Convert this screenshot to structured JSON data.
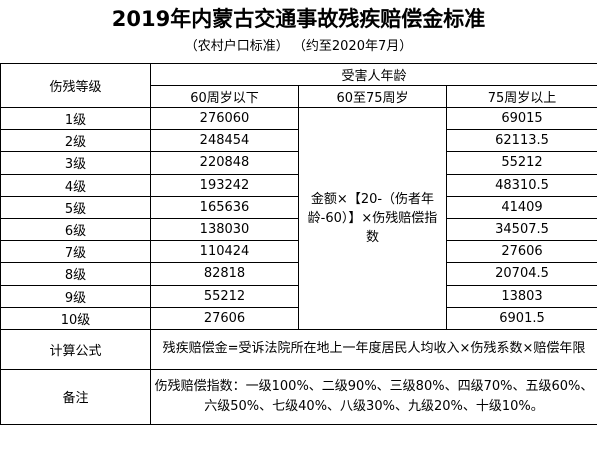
{
  "title": "2019年内蒙古交通事故残疾赔偿金标准",
  "subtitle": "（农村户口标准）    （约至2020年7月）",
  "headers": {
    "grade": "伤残等级",
    "age_group": "受害人年龄",
    "under60": "60周岁以下",
    "from60to75": "60至75周岁",
    "over75": "75周岁以上"
  },
  "rows": [
    {
      "grade": "1级",
      "under60": "276060",
      "over75": "69015"
    },
    {
      "grade": "2级",
      "under60": "248454",
      "over75": "62113.5"
    },
    {
      "grade": "3级",
      "under60": "220848",
      "over75": "55212"
    },
    {
      "grade": "4级",
      "under60": "193242",
      "over75": "48310.5"
    },
    {
      "grade": "5级",
      "under60": "165636",
      "over75": "41409"
    },
    {
      "grade": "6级",
      "under60": "138030",
      "over75": "34507.5"
    },
    {
      "grade": "7级",
      "under60": "110424",
      "over75": "27606"
    },
    {
      "grade": "8级",
      "under60": "82818",
      "over75": "20704.5"
    },
    {
      "grade": "9级",
      "under60": "55212",
      "over75": "13803"
    },
    {
      "grade": "10级",
      "under60": "27606",
      "over75": "6901.5"
    }
  ],
  "middle_formula": "金额×【20-（伤者年龄-60）】×伤残赔偿指数",
  "formula": {
    "label": "计算公式",
    "text": "残疾赔偿金=受诉法院所在地上一年度居民人均收入×伤残系数×赔偿年限"
  },
  "note": {
    "label": "备注",
    "text": "伤残赔偿指数：一级100%、二级90%、三级80%、四级70%、五级60%、六级50%、七级40%、八级30%、九级20%、十级10%。"
  }
}
